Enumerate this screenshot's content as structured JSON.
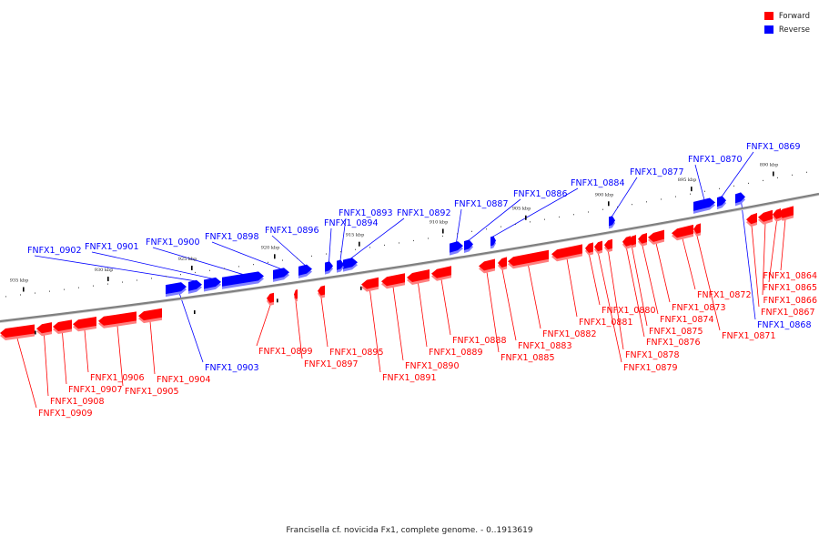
{
  "legend": {
    "forward": {
      "label": "Forward",
      "color": "#ff0000"
    },
    "reverse": {
      "label": "Reverse",
      "color": "#0000ff"
    }
  },
  "caption": "Francisella cf. novicida Fx1, complete genome. - 0..1913619",
  "colors": {
    "forward": "#ff0000",
    "forward_light": "#ff8080",
    "reverse": "#0000ff",
    "reverse_light": "#8080ff",
    "backbone": "#808080"
  },
  "tick_labels": [
    "890 kbp",
    "895 kbp",
    "900 kbp",
    "905 kbp",
    "910 kbp",
    "915 kbp",
    "920 kbp",
    "925 kbp",
    "930 kbp",
    "935 kbp"
  ],
  "genes": [
    {
      "name": "FNFX1_0864",
      "strand": "forward"
    },
    {
      "name": "FNFX1_0865",
      "strand": "forward"
    },
    {
      "name": "FNFX1_0866",
      "strand": "forward"
    },
    {
      "name": "FNFX1_0867",
      "strand": "forward"
    },
    {
      "name": "FNFX1_0868",
      "strand": "reverse"
    },
    {
      "name": "FNFX1_0869",
      "strand": "reverse"
    },
    {
      "name": "FNFX1_0870",
      "strand": "reverse"
    },
    {
      "name": "FNFX1_0871",
      "strand": "forward"
    },
    {
      "name": "FNFX1_0872",
      "strand": "forward"
    },
    {
      "name": "FNFX1_0873",
      "strand": "forward"
    },
    {
      "name": "FNFX1_0874",
      "strand": "forward"
    },
    {
      "name": "FNFX1_0875",
      "strand": "forward"
    },
    {
      "name": "FNFX1_0876",
      "strand": "forward"
    },
    {
      "name": "FNFX1_0877",
      "strand": "reverse"
    },
    {
      "name": "FNFX1_0878",
      "strand": "forward"
    },
    {
      "name": "FNFX1_0879",
      "strand": "forward"
    },
    {
      "name": "FNFX1_0880",
      "strand": "forward"
    },
    {
      "name": "FNFX1_0881",
      "strand": "forward"
    },
    {
      "name": "FNFX1_0882",
      "strand": "forward"
    },
    {
      "name": "FNFX1_0883",
      "strand": "forward"
    },
    {
      "name": "FNFX1_0884",
      "strand": "reverse"
    },
    {
      "name": "FNFX1_0885",
      "strand": "forward"
    },
    {
      "name": "FNFX1_0886",
      "strand": "reverse"
    },
    {
      "name": "FNFX1_0887",
      "strand": "reverse"
    },
    {
      "name": "FNFX1_0888",
      "strand": "forward"
    },
    {
      "name": "FNFX1_0889",
      "strand": "forward"
    },
    {
      "name": "FNFX1_0890",
      "strand": "forward"
    },
    {
      "name": "FNFX1_0891",
      "strand": "forward"
    },
    {
      "name": "FNFX1_0892",
      "strand": "reverse"
    },
    {
      "name": "FNFX1_0893",
      "strand": "reverse"
    },
    {
      "name": "FNFX1_0894",
      "strand": "reverse"
    },
    {
      "name": "FNFX1_0895",
      "strand": "forward"
    },
    {
      "name": "FNFX1_0896",
      "strand": "reverse"
    },
    {
      "name": "FNFX1_0897",
      "strand": "forward"
    },
    {
      "name": "FNFX1_0898",
      "strand": "reverse"
    },
    {
      "name": "FNFX1_0899",
      "strand": "forward"
    },
    {
      "name": "FNFX1_0900",
      "strand": "reverse"
    },
    {
      "name": "FNFX1_0901",
      "strand": "reverse"
    },
    {
      "name": "FNFX1_0902",
      "strand": "reverse"
    },
    {
      "name": "FNFX1_0903",
      "strand": "reverse"
    },
    {
      "name": "FNFX1_0904",
      "strand": "forward"
    },
    {
      "name": "FNFX1_0905",
      "strand": "forward"
    },
    {
      "name": "FNFX1_0906",
      "strand": "forward"
    },
    {
      "name": "FNFX1_0907",
      "strand": "forward"
    },
    {
      "name": "FNFX1_0908",
      "strand": "forward"
    },
    {
      "name": "FNFX1_0909",
      "strand": "forward"
    }
  ]
}
